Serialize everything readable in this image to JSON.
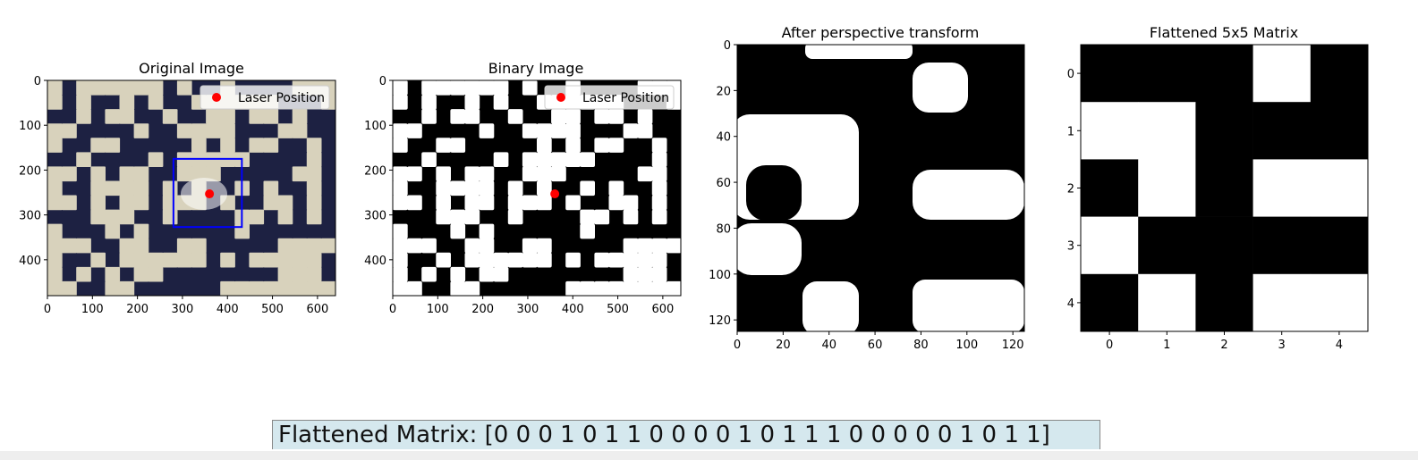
{
  "chart_data": [
    {
      "type": "heatmap",
      "title": "Original Image",
      "xticks": [
        0,
        100,
        200,
        300,
        400,
        500,
        600
      ],
      "yticks": [
        0,
        100,
        200,
        300,
        400
      ],
      "xlim": [
        0,
        640
      ],
      "ylim": [
        480,
        0
      ],
      "legend": {
        "label": "Laser Position",
        "placement": "top-right",
        "color": "#ff0000"
      },
      "laser_point": {
        "x": 360,
        "y": 253
      },
      "roi_box": {
        "x0": 280,
        "y0": 175,
        "x1": 432,
        "y1": 327,
        "color": "#0000ff"
      },
      "colors": {
        "dark": "#1d2142",
        "light": "#d8d2bc"
      }
    },
    {
      "type": "heatmap",
      "title": "Binary Image",
      "xticks": [
        0,
        100,
        200,
        300,
        400,
        500,
        600
      ],
      "yticks": [
        0,
        100,
        200,
        300,
        400
      ],
      "xlim": [
        0,
        640
      ],
      "ylim": [
        480,
        0
      ],
      "legend": {
        "label": "Laser Position",
        "placement": "top-right",
        "color": "#ff0000"
      },
      "laser_point": {
        "x": 360,
        "y": 253
      },
      "colors": {
        "dark": "#000000",
        "light": "#ffffff"
      }
    },
    {
      "type": "heatmap",
      "title": "After perspective transform",
      "xticks": [
        0,
        20,
        40,
        60,
        80,
        100,
        120
      ],
      "yticks": [
        0,
        20,
        40,
        60,
        80,
        100,
        120
      ],
      "xlim": [
        0,
        125
      ],
      "ylim": [
        125,
        0
      ],
      "colors": {
        "dark": "#000000",
        "light": "#ffffff"
      }
    },
    {
      "type": "heatmap",
      "title": "Flattened 5x5 Matrix",
      "xticks": [
        0,
        1,
        2,
        3,
        4
      ],
      "yticks": [
        0,
        1,
        2,
        3,
        4
      ],
      "xlim": [
        -0.5,
        4.5
      ],
      "ylim": [
        4.5,
        -0.5
      ],
      "matrix": [
        [
          0,
          0,
          0,
          1,
          0
        ],
        [
          1,
          1,
          0,
          0,
          0
        ],
        [
          0,
          1,
          0,
          1,
          1
        ],
        [
          1,
          0,
          0,
          0,
          0
        ],
        [
          0,
          1,
          0,
          1,
          1
        ]
      ],
      "colors": {
        "dark": "#000000",
        "light": "#ffffff"
      }
    }
  ],
  "flattened_text": "Flattened Matrix: [0 0 0 1 0 1 1 0 0 0 0 1 0 1 1 1 0 0 0 0 0 1 0 1 1]"
}
